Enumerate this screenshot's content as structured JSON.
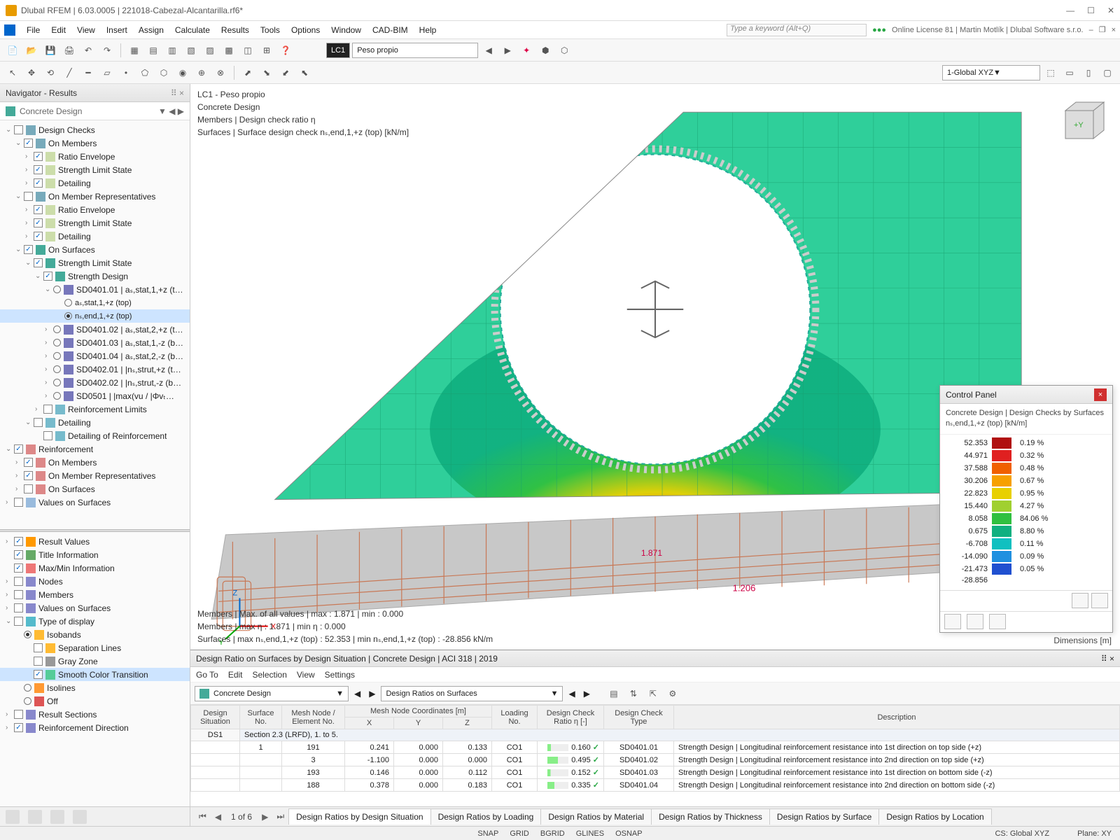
{
  "window": {
    "title": "Dlubal RFEM | 6.03.0005 | 221018-Cabezal-Alcantarilla.rf6*",
    "license": "Online License 81 | Martin Motlík | Dlubal Software s.r.o.",
    "keyword_placeholder": "Type a keyword (Alt+Q)"
  },
  "menu": [
    "File",
    "Edit",
    "View",
    "Insert",
    "Assign",
    "Calculate",
    "Results",
    "Tools",
    "Options",
    "Window",
    "CAD-BIM",
    "Help"
  ],
  "lc": {
    "tag": "LC1",
    "name": "Peso propio",
    "dropdown": "Global XYZ",
    "global_num": "1"
  },
  "nav": {
    "title": "Navigator - Results",
    "combo": "Concrete Design",
    "tree1": [
      {
        "ind": 8,
        "exp": "v",
        "chk": "",
        "ico": "#7ab",
        "label": "Design Checks"
      },
      {
        "ind": 22,
        "exp": "v",
        "chk": "✓",
        "ico": "#7ab",
        "label": "On Members"
      },
      {
        "ind": 36,
        "exp": ">",
        "chk": "✓",
        "ico": "#cda",
        "label": "Ratio Envelope"
      },
      {
        "ind": 36,
        "exp": ">",
        "chk": "✓",
        "ico": "#cda",
        "label": "Strength Limit State"
      },
      {
        "ind": 36,
        "exp": ">",
        "chk": "✓",
        "ico": "#cda",
        "label": "Detailing"
      },
      {
        "ind": 22,
        "exp": "v",
        "chk": "",
        "ico": "#7ab",
        "label": "On Member Representatives"
      },
      {
        "ind": 36,
        "exp": ">",
        "chk": "✓",
        "ico": "#cda",
        "label": "Ratio Envelope"
      },
      {
        "ind": 36,
        "exp": ">",
        "chk": "✓",
        "ico": "#cda",
        "label": "Strength Limit State"
      },
      {
        "ind": 36,
        "exp": ">",
        "chk": "✓",
        "ico": "#cda",
        "label": "Detailing"
      },
      {
        "ind": 22,
        "exp": "v",
        "chk": "✓",
        "ico": "#4a9",
        "label": "On Surfaces"
      },
      {
        "ind": 36,
        "exp": "v",
        "chk": "✓",
        "ico": "#4a9",
        "label": "Strength Limit State"
      },
      {
        "ind": 50,
        "exp": "v",
        "chk": "✓",
        "ico": "#4a9",
        "label": "Strength Design"
      },
      {
        "ind": 64,
        "exp": "v",
        "rad": "off",
        "ico": "#77b",
        "label": "SD0401.01 | aₛ,stat,1,+z (t…"
      },
      {
        "ind": 80,
        "exp": "",
        "rad": "off",
        "ico": "",
        "label": "aₛ,stat,1,+z (top)",
        "small": true
      },
      {
        "ind": 80,
        "exp": "",
        "rad": "on",
        "ico": "",
        "label": "nₛ,end,1,+z (top)",
        "sel": true,
        "small": true
      },
      {
        "ind": 64,
        "exp": ">",
        "rad": "off",
        "ico": "#77b",
        "label": "SD0401.02 | aₛ,stat,2,+z (t…"
      },
      {
        "ind": 64,
        "exp": ">",
        "rad": "off",
        "ico": "#77b",
        "label": "SD0401.03 | aₛ,stat,1,-z (b…"
      },
      {
        "ind": 64,
        "exp": ">",
        "rad": "off",
        "ico": "#77b",
        "label": "SD0401.04 | aₛ,stat,2,-z (b…"
      },
      {
        "ind": 64,
        "exp": ">",
        "rad": "off",
        "ico": "#77b",
        "label": "SD0402.01 | |nₛ,strut,+z (t…"
      },
      {
        "ind": 64,
        "exp": ">",
        "rad": "off",
        "ico": "#77b",
        "label": "SD0402.02 | |nₛ,strut,-z (b…"
      },
      {
        "ind": 64,
        "exp": ">",
        "rad": "off",
        "ico": "#77b",
        "label": "SD0501 | |max(vu / |Φvₜ…"
      },
      {
        "ind": 50,
        "exp": ">",
        "chk": "",
        "ico": "#7bc",
        "label": "Reinforcement Limits"
      },
      {
        "ind": 36,
        "exp": "v",
        "chk": "",
        "ico": "#7bc",
        "label": "Detailing"
      },
      {
        "ind": 50,
        "exp": "",
        "chk": "",
        "ico": "#7bc",
        "label": "Detailing of Reinforcement"
      },
      {
        "ind": 8,
        "exp": "v",
        "chk": "✓",
        "ico": "#d88",
        "label": "Reinforcement"
      },
      {
        "ind": 22,
        "exp": ">",
        "chk": "✓",
        "ico": "#d88",
        "label": "On Members"
      },
      {
        "ind": 22,
        "exp": ">",
        "chk": "✓",
        "ico": "#d88",
        "label": "On Member Representatives"
      },
      {
        "ind": 22,
        "exp": ">",
        "chk": "",
        "ico": "#d88",
        "label": "On Surfaces"
      },
      {
        "ind": 8,
        "exp": ">",
        "chk": "",
        "ico": "#9bd",
        "label": "Values on Surfaces"
      }
    ],
    "tree2": [
      {
        "ind": 8,
        "exp": ">",
        "chk": "✓",
        "ico": "#f90",
        "label": "Result Values"
      },
      {
        "ind": 8,
        "exp": "",
        "chk": "✓",
        "ico": "#6a6",
        "label": "Title Information"
      },
      {
        "ind": 8,
        "exp": "",
        "chk": "✓",
        "ico": "#e77",
        "label": "Max/Min Information"
      },
      {
        "ind": 8,
        "exp": ">",
        "chk": "",
        "ico": "#88c",
        "label": "Nodes"
      },
      {
        "ind": 8,
        "exp": ">",
        "chk": "",
        "ico": "#88c",
        "label": "Members"
      },
      {
        "ind": 8,
        "exp": ">",
        "chk": "",
        "ico": "#88c",
        "label": "Values on Surfaces"
      },
      {
        "ind": 8,
        "exp": "v",
        "chk": "",
        "ico": "#5bc",
        "label": "Type of display"
      },
      {
        "ind": 22,
        "exp": "",
        "rad": "on",
        "ico": "#fb3",
        "label": "Isobands"
      },
      {
        "ind": 36,
        "exp": "",
        "chk": "",
        "ico": "#fb3",
        "label": "Separation Lines"
      },
      {
        "ind": 36,
        "exp": "",
        "chk": "",
        "ico": "#999",
        "label": "Gray Zone"
      },
      {
        "ind": 36,
        "exp": "",
        "chk": "✓",
        "ico": "#5c9",
        "label": "Smooth Color Transition",
        "sel": true
      },
      {
        "ind": 22,
        "exp": "",
        "rad": "off",
        "ico": "#f93",
        "label": "Isolines"
      },
      {
        "ind": 22,
        "exp": "",
        "rad": "off",
        "ico": "#d55",
        "label": "Off"
      },
      {
        "ind": 8,
        "exp": ">",
        "chk": "",
        "ico": "#88c",
        "label": "Result Sections"
      },
      {
        "ind": 8,
        "exp": ">",
        "chk": "✓",
        "ico": "#88c",
        "label": "Reinforcement Direction"
      }
    ]
  },
  "vlabels": [
    "LC1 - Peso propio",
    "Concrete Design",
    "Members | Design check ratio η",
    "Surfaces | Surface design check nₛ,end,1,+z (top) [kN/m]"
  ],
  "stats": [
    "Members | Max. of all values | max  : 1.871 | min  : 0.000",
    "Members | max η : 1.871 | min η : 0.000",
    "Surfaces | max nₛ,end,1,+z (top) : 52.353 | min nₛ,end,1,+z (top) : -28.856 kN/m"
  ],
  "dims": "Dimensions [m]",
  "ctrl": {
    "title": "Control Panel",
    "sub1": "Concrete Design | Design Checks by Surfaces",
    "sub2": "nₛ,end,1,+z (top) [kN/m]",
    "legend": [
      {
        "v": "52.353",
        "c": "#b01010",
        "p": ""
      },
      {
        "v": "44.971",
        "c": "#e02020",
        "p": "0.19 %"
      },
      {
        "v": "37.588",
        "c": "#f06000",
        "p": "0.32 %"
      },
      {
        "v": "30.206",
        "c": "#f7a000",
        "p": "0.48 %"
      },
      {
        "v": "22.823",
        "c": "#e8d000",
        "p": "0.67 %"
      },
      {
        "v": "15.440",
        "c": "#a0d030",
        "p": "0.95 %"
      },
      {
        "v": "8.058",
        "c": "#30c040",
        "p": "4.27 %"
      },
      {
        "v": "0.675",
        "c": "#10b080",
        "p": "84.06 %"
      },
      {
        "v": "-6.708",
        "c": "#10c0c0",
        "p": "8.80 %"
      },
      {
        "v": "-14.090",
        "c": "#2090e0",
        "p": "0.11 %"
      },
      {
        "v": "-21.473",
        "c": "#2050d0",
        "p": "0.09 %"
      },
      {
        "v": "-28.856",
        "c": "#1020a0",
        "p": "0.05 %"
      }
    ]
  },
  "results": {
    "title": "Design Ratio on Surfaces by Design Situation | Concrete Design | ACI 318 | 2019",
    "menu": [
      "Go To",
      "Edit",
      "Selection",
      "View",
      "Settings"
    ],
    "combo1": "Concrete Design",
    "combo2": "Design Ratios on Surfaces",
    "headers": {
      "ds": "Design\nSituation",
      "sn": "Surface\nNo.",
      "mn": "Mesh Node /\nElement No.",
      "coord": "Mesh Node Coordinates [m]",
      "x": "X",
      "y": "Y",
      "z": "Z",
      "ln": "Loading\nNo.",
      "dcr": "Design Check\nRatio η [-]",
      "dct": "Design Check\nType",
      "desc": "Description"
    },
    "group": "Section 2.3 (LRFD), 1. to 5.",
    "ds": "DS1",
    "rows": [
      {
        "sn": "1",
        "mn": "191",
        "x": "0.241",
        "y": "0.000",
        "z": "0.133",
        "ln": "CO1",
        "r": "0.160",
        "t": "SD0401.01",
        "d": "Strength Design | Longitudinal reinforcement resistance into 1st direction on top side (+z)"
      },
      {
        "sn": "",
        "mn": "3",
        "x": "-1.100",
        "y": "0.000",
        "z": "0.000",
        "ln": "CO1",
        "r": "0.495",
        "t": "SD0401.02",
        "d": "Strength Design | Longitudinal reinforcement resistance into 2nd direction on top side (+z)"
      },
      {
        "sn": "",
        "mn": "193",
        "x": "0.146",
        "y": "0.000",
        "z": "0.112",
        "ln": "CO1",
        "r": "0.152",
        "t": "SD0401.03",
        "d": "Strength Design | Longitudinal reinforcement resistance into 1st direction on bottom side (-z)"
      },
      {
        "sn": "",
        "mn": "188",
        "x": "0.378",
        "y": "0.000",
        "z": "0.183",
        "ln": "CO1",
        "r": "0.335",
        "t": "SD0401.04",
        "d": "Strength Design | Longitudinal reinforcement resistance into 2nd direction on bottom side (-z)"
      }
    ],
    "tabs": [
      "Design Ratios by Design Situation",
      "Design Ratios by Loading",
      "Design Ratios by Material",
      "Design Ratios by Thickness",
      "Design Ratios by Surface",
      "Design Ratios by Location"
    ],
    "page": "1 of 6"
  },
  "status": {
    "items": [
      "SNAP",
      "GRID",
      "BGRID",
      "GLINES",
      "OSNAP"
    ],
    "cs": "CS: Global XYZ",
    "plane": "Plane: XY"
  },
  "model": {
    "colors": {
      "rebar": "#c8704a",
      "wall_mesh": "#5fc78a",
      "floor": "#bfbfbf",
      "hot1": "#e8d000",
      "hot2": "#f06000",
      "hot3": "#d01010"
    }
  }
}
